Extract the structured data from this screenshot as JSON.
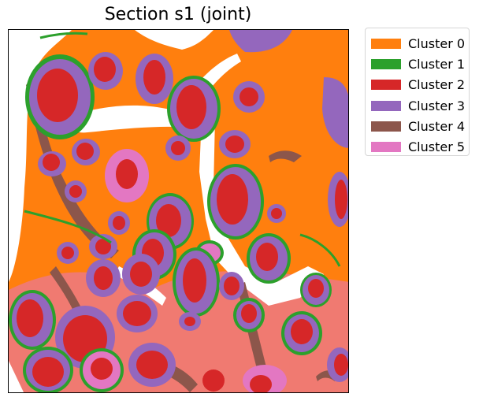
{
  "title": "Section s1 (joint)",
  "colors": {
    "cluster0": "#ff7f0e",
    "cluster1": "#2ca02c",
    "cluster2": "#d62728",
    "cluster3": "#9467bd",
    "cluster4": "#8c564b",
    "cluster5": "#e377c2"
  },
  "legend": [
    {
      "label": "Cluster 0",
      "color": "#ff7f0e"
    },
    {
      "label": "Cluster 1",
      "color": "#2ca02c"
    },
    {
      "label": "Cluster 2",
      "color": "#d62728"
    },
    {
      "label": "Cluster 3",
      "color": "#9467bd"
    },
    {
      "label": "Cluster 4",
      "color": "#8c564b"
    },
    {
      "label": "Cluster 5",
      "color": "#e377c2"
    }
  ]
}
